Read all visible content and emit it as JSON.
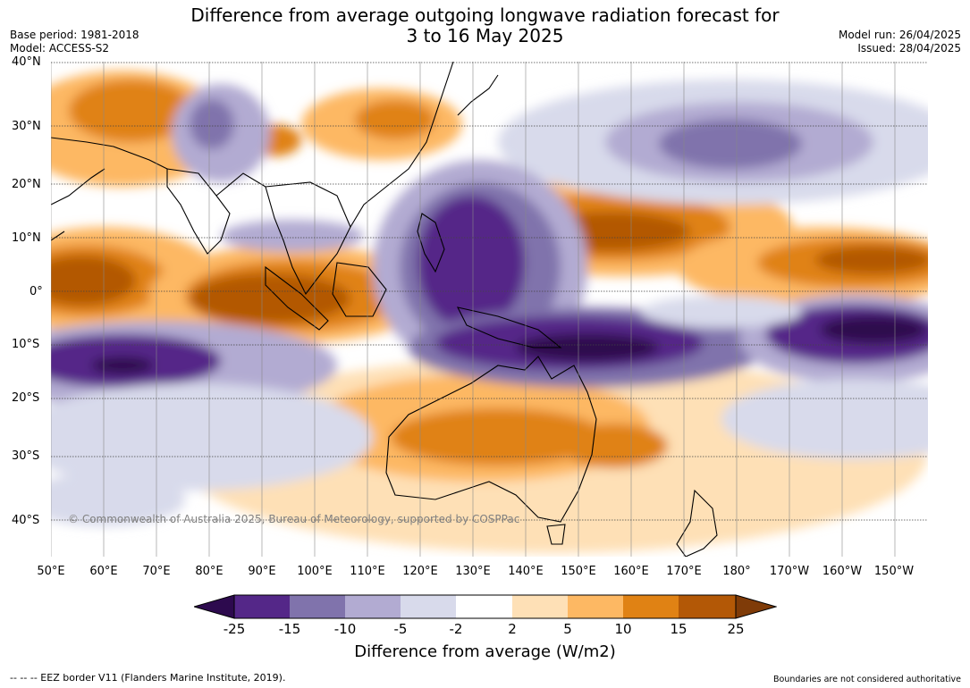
{
  "title": {
    "line1": "Difference from average outgoing longwave radiation forecast for",
    "line2": "3 to 16 May 2025"
  },
  "meta": {
    "base_period": "Base period: 1981-2018",
    "model": "Model: ACCESS-S2",
    "model_run": "Model run: 26/04/2025",
    "issued": "Issued: 28/04/2025"
  },
  "axes": {
    "lat_labels": [
      "40°N",
      "30°N",
      "20°N",
      "10°N",
      "0°",
      "10°S",
      "20°S",
      "30°S",
      "40°S"
    ],
    "lon_labels": [
      "50°E",
      "60°E",
      "70°E",
      "80°E",
      "90°E",
      "100°E",
      "110°E",
      "120°E",
      "130°E",
      "140°E",
      "150°E",
      "160°E",
      "170°E",
      "180°",
      "170°W",
      "160°W",
      "150°W"
    ]
  },
  "copyright": "© Commonwealth of Australia 2025, Bureau of Meteorology, supported by COSPPac",
  "legend": {
    "title": "Difference from average (W/m2)",
    "ticks": [
      "-25",
      "-15",
      "-10",
      "-5",
      "-2",
      "2",
      "5",
      "10",
      "15",
      "25"
    ],
    "colors": {
      "below_-25": "#2d0a4e",
      "-25_-15": "#542788",
      "-15_-10": "#8073ac",
      "-10_-5": "#b2abd2",
      "-5_-2": "#d8daeb",
      "-2_2": "#ffffff",
      "2_5": "#fee0b6",
      "5_10": "#fdb863",
      "10_15": "#e08214",
      "15_25": "#b35806",
      "above_25": "#7f3b08"
    }
  },
  "footer": {
    "eez": "--  --  -- EEZ border V11 (Flanders Marine Institute, 2019).",
    "disclaimer": "Boundaries are not considered authoritative"
  }
}
